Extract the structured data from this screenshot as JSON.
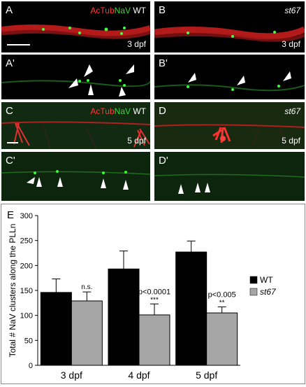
{
  "panels": {
    "A": {
      "label": "A",
      "legend": {
        "acTub": "AcTub",
        "nav": "NaV",
        "genotype": "WT"
      },
      "stage": "3 dpf"
    },
    "B": {
      "label": "B",
      "genotype": "st67",
      "stage": "3 dpf"
    },
    "A1": {
      "label": "A'"
    },
    "B1": {
      "label": "B'"
    },
    "C": {
      "label": "C",
      "legend": {
        "acTub": "AcTub",
        "nav": "NaV",
        "genotype": "WT"
      },
      "stage": "5 dpf"
    },
    "D": {
      "label": "D",
      "genotype": "st67",
      "stage": "5 dpf"
    },
    "C1": {
      "label": "C'"
    },
    "D1": {
      "label": "D'"
    }
  },
  "colors": {
    "actub": "#ff3030",
    "nav": "#30e030",
    "wt_bar": "#000000",
    "st67_bar": "#a6a6a6"
  },
  "chart_label": "E",
  "chart_data": {
    "type": "bar",
    "categories": [
      "3 dpf",
      "4 dpf",
      "5 dpf"
    ],
    "series": [
      {
        "name": "WT",
        "values": [
          146,
          193,
          227
        ],
        "errors": [
          27,
          36,
          22
        ]
      },
      {
        "name": "st67",
        "values": [
          129,
          101,
          105
        ],
        "errors": [
          18,
          22,
          12
        ]
      }
    ],
    "annotations": [
      {
        "category": "3 dpf",
        "text": "n.s."
      },
      {
        "category": "4 dpf",
        "text": "p<0.0001",
        "stars": "***"
      },
      {
        "category": "5 dpf",
        "text": "p<0.005",
        "stars": "**"
      }
    ],
    "ylabel": "Total # NaV clusters along the PLLn",
    "xlabel": "",
    "ylim": [
      0,
      300
    ],
    "yticks": [
      "0",
      "50",
      "100",
      "150",
      "200",
      "250",
      "300"
    ],
    "legend_position": "right",
    "grid": false
  }
}
